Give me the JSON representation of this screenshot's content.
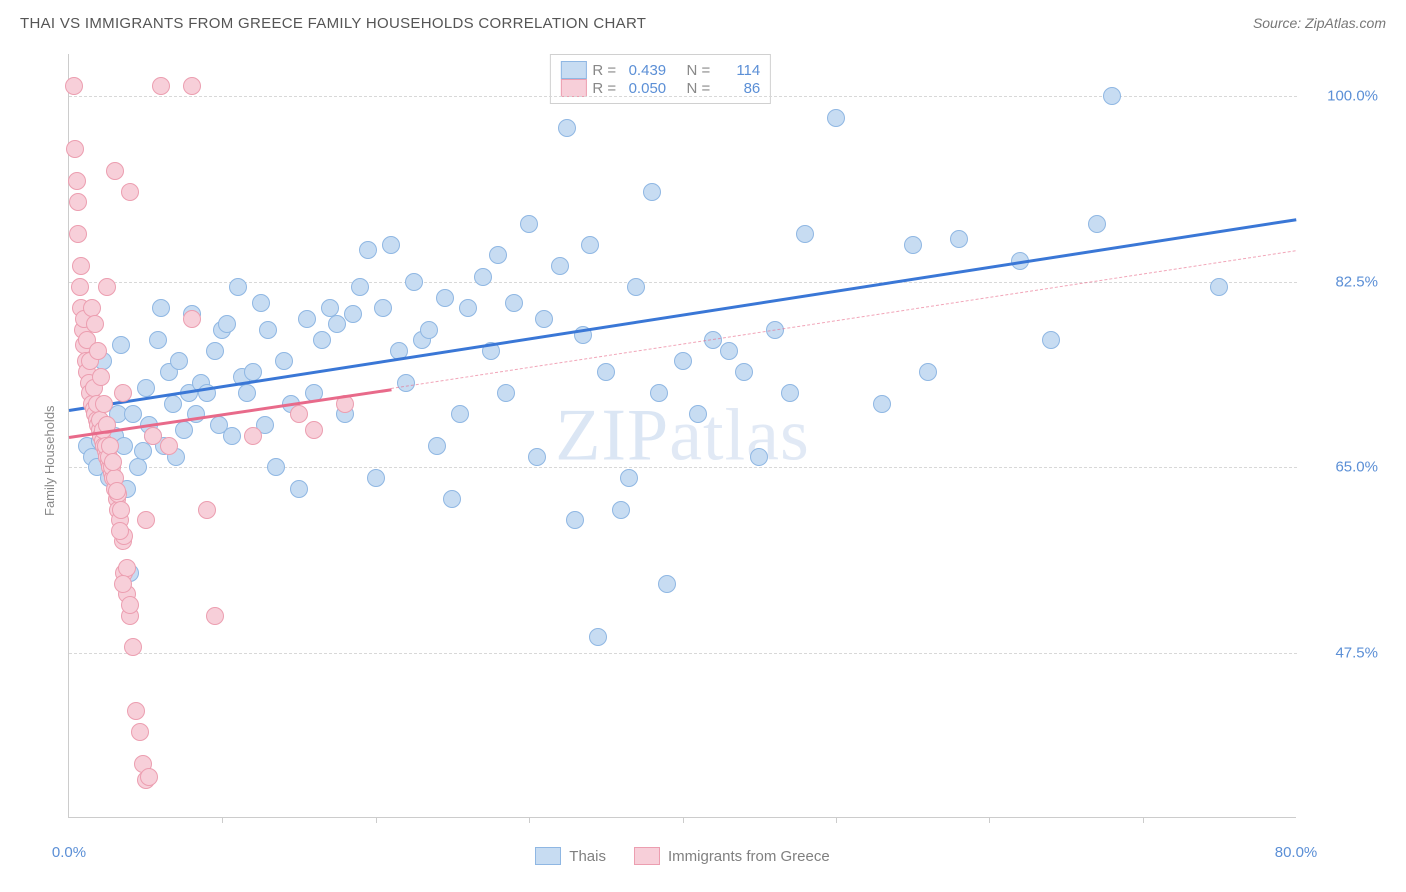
{
  "title": "THAI VS IMMIGRANTS FROM GREECE FAMILY HOUSEHOLDS CORRELATION CHART",
  "source": "Source: ZipAtlas.com",
  "watermark": "ZIPatlas",
  "ylabel": "Family Households",
  "chart": {
    "type": "scatter",
    "xlim": [
      0,
      80
    ],
    "ylim": [
      32,
      104
    ],
    "x_axis_labels": [
      {
        "x": 0,
        "label": "0.0%"
      },
      {
        "x": 80,
        "label": "80.0%"
      }
    ],
    "xticks": [
      10,
      20,
      30,
      40,
      50,
      60,
      70
    ],
    "yticks": [
      {
        "y": 47.5,
        "label": "47.5%"
      },
      {
        "y": 65.0,
        "label": "65.0%"
      },
      {
        "y": 82.5,
        "label": "82.5%"
      },
      {
        "y": 100.0,
        "label": "100.0%"
      }
    ],
    "grid_color": "#d8d8d8",
    "background_color": "#ffffff",
    "marker_radius": 9,
    "series": [
      {
        "name": "Thais",
        "color_fill": "#c7dcf2",
        "color_stroke": "#8fb7e3",
        "trend_color": "#3a77d6",
        "trend_width": 3,
        "trend": {
          "x1": 0,
          "y1": 70.5,
          "x2": 80,
          "y2": 88.5
        },
        "extrapolation": null,
        "stats": {
          "R": "0.439",
          "N": "114"
        },
        "points": [
          [
            1.2,
            67
          ],
          [
            1.5,
            66
          ],
          [
            1.8,
            65
          ],
          [
            2,
            67.5
          ],
          [
            2.2,
            75
          ],
          [
            2.5,
            66
          ],
          [
            2.6,
            64
          ],
          [
            2.8,
            68
          ],
          [
            3,
            68
          ],
          [
            3.2,
            70
          ],
          [
            3.4,
            76.5
          ],
          [
            3.6,
            67
          ],
          [
            3.8,
            63
          ],
          [
            4,
            55
          ],
          [
            4.2,
            70
          ],
          [
            4.5,
            65
          ],
          [
            4.8,
            66.5
          ],
          [
            5,
            72.5
          ],
          [
            5.2,
            69
          ],
          [
            5.5,
            68
          ],
          [
            5.8,
            77
          ],
          [
            6,
            80
          ],
          [
            6.2,
            67
          ],
          [
            6.5,
            74
          ],
          [
            6.8,
            71
          ],
          [
            7,
            66
          ],
          [
            7.2,
            75
          ],
          [
            7.5,
            68.5
          ],
          [
            7.8,
            72
          ],
          [
            8,
            79.5
          ],
          [
            8.3,
            70
          ],
          [
            8.6,
            73
          ],
          [
            9,
            72
          ],
          [
            9.5,
            76
          ],
          [
            9.8,
            69
          ],
          [
            10,
            78
          ],
          [
            10.3,
            78.5
          ],
          [
            10.6,
            68
          ],
          [
            11,
            82
          ],
          [
            11.3,
            73.5
          ],
          [
            11.6,
            72
          ],
          [
            12,
            74
          ],
          [
            12.5,
            80.5
          ],
          [
            12.8,
            69
          ],
          [
            13,
            78
          ],
          [
            13.5,
            65
          ],
          [
            14,
            75
          ],
          [
            14.5,
            71
          ],
          [
            15,
            63
          ],
          [
            15.5,
            79
          ],
          [
            16,
            72
          ],
          [
            16.5,
            77
          ],
          [
            17,
            80
          ],
          [
            17.5,
            78.5
          ],
          [
            18,
            70
          ],
          [
            18.5,
            79.5
          ],
          [
            19,
            82
          ],
          [
            19.5,
            85.5
          ],
          [
            20,
            64
          ],
          [
            20.5,
            80
          ],
          [
            21,
            86
          ],
          [
            21.5,
            76
          ],
          [
            22,
            73
          ],
          [
            22.5,
            82.5
          ],
          [
            23,
            77
          ],
          [
            23.5,
            78
          ],
          [
            24,
            67
          ],
          [
            24.5,
            81
          ],
          [
            25,
            62
          ],
          [
            25.5,
            70
          ],
          [
            26,
            80
          ],
          [
            27,
            83
          ],
          [
            27.5,
            76
          ],
          [
            28,
            85
          ],
          [
            28.5,
            72
          ],
          [
            29,
            80.5
          ],
          [
            30,
            88
          ],
          [
            30.5,
            66
          ],
          [
            31,
            79
          ],
          [
            32,
            84
          ],
          [
            32.5,
            97
          ],
          [
            33,
            60
          ],
          [
            33.5,
            77.5
          ],
          [
            34,
            86
          ],
          [
            34.5,
            49
          ],
          [
            35,
            74
          ],
          [
            36,
            61
          ],
          [
            36.5,
            64
          ],
          [
            37,
            82
          ],
          [
            38,
            91
          ],
          [
            38.5,
            72
          ],
          [
            39,
            54
          ],
          [
            40,
            75
          ],
          [
            41,
            70
          ],
          [
            42,
            77
          ],
          [
            43,
            76
          ],
          [
            44,
            74
          ],
          [
            45,
            66
          ],
          [
            46,
            78
          ],
          [
            47,
            72
          ],
          [
            48,
            87
          ],
          [
            50,
            98
          ],
          [
            53,
            71
          ],
          [
            55,
            86
          ],
          [
            56,
            74
          ],
          [
            58,
            86.5
          ],
          [
            62,
            84.5
          ],
          [
            64,
            77
          ],
          [
            67,
            88
          ],
          [
            68,
            100
          ],
          [
            75,
            82
          ]
        ]
      },
      {
        "name": "Immigrants from Greece",
        "color_fill": "#f7cfd9",
        "color_stroke": "#ec9eb0",
        "trend_color": "#e86a8a",
        "trend_width": 3,
        "trend": {
          "x1": 0,
          "y1": 68,
          "x2": 21,
          "y2": 72.5
        },
        "extrapolation": {
          "x1": 21,
          "y1": 72.5,
          "x2": 80,
          "y2": 85.5,
          "dash": true
        },
        "stats": {
          "R": "0.050",
          "N": "86"
        },
        "points": [
          [
            0.3,
            101
          ],
          [
            0.5,
            92
          ],
          [
            0.6,
            87
          ],
          [
            0.7,
            82
          ],
          [
            0.8,
            80
          ],
          [
            0.9,
            78
          ],
          [
            1,
            76.5
          ],
          [
            1.1,
            75
          ],
          [
            1.2,
            74
          ],
          [
            1.3,
            73
          ],
          [
            1.4,
            72
          ],
          [
            1.5,
            71
          ],
          [
            1.6,
            70.5
          ],
          [
            1.7,
            70
          ],
          [
            1.8,
            69.5
          ],
          [
            1.9,
            69
          ],
          [
            2,
            68.5
          ],
          [
            2.1,
            68
          ],
          [
            2.2,
            67.5
          ],
          [
            2.3,
            67
          ],
          [
            2.4,
            66.5
          ],
          [
            2.5,
            66
          ],
          [
            2.6,
            65.5
          ],
          [
            2.7,
            65
          ],
          [
            2.8,
            64.5
          ],
          [
            2.9,
            64
          ],
          [
            3,
            63
          ],
          [
            3.1,
            62
          ],
          [
            3.2,
            61
          ],
          [
            3.3,
            60
          ],
          [
            3.5,
            58
          ],
          [
            3.6,
            55
          ],
          [
            3.8,
            53
          ],
          [
            4,
            51
          ],
          [
            4.2,
            48
          ],
          [
            4.4,
            42
          ],
          [
            4.6,
            40
          ],
          [
            4.8,
            37
          ],
          [
            5,
            35.5
          ],
          [
            0.4,
            95
          ],
          [
            0.6,
            90
          ],
          [
            0.8,
            84
          ],
          [
            1,
            79
          ],
          [
            1.2,
            77
          ],
          [
            1.4,
            75
          ],
          [
            1.6,
            72.5
          ],
          [
            1.8,
            71
          ],
          [
            2,
            69.5
          ],
          [
            2.2,
            68.5
          ],
          [
            2.4,
            67
          ],
          [
            2.6,
            66
          ],
          [
            2.8,
            65
          ],
          [
            3,
            64
          ],
          [
            3.2,
            62.5
          ],
          [
            3.4,
            61
          ],
          [
            3.6,
            58.5
          ],
          [
            3.8,
            55.5
          ],
          [
            4,
            52
          ],
          [
            1.5,
            80
          ],
          [
            1.7,
            78.5
          ],
          [
            1.9,
            76
          ],
          [
            2.1,
            73.5
          ],
          [
            2.3,
            71
          ],
          [
            2.5,
            69
          ],
          [
            2.7,
            67
          ],
          [
            2.9,
            65.5
          ],
          [
            3.1,
            62.8
          ],
          [
            3.3,
            59
          ],
          [
            3.5,
            54
          ],
          [
            6,
            101
          ],
          [
            8,
            101
          ],
          [
            3,
            93
          ],
          [
            4,
            91
          ],
          [
            8,
            79
          ],
          [
            9,
            61
          ],
          [
            9.5,
            51
          ],
          [
            2.5,
            82
          ],
          [
            3.5,
            72
          ],
          [
            5.5,
            68
          ],
          [
            6.5,
            67
          ],
          [
            12,
            68
          ],
          [
            15,
            70
          ],
          [
            18,
            71
          ],
          [
            16,
            68.5
          ],
          [
            5,
            60
          ],
          [
            5.2,
            35.8
          ]
        ]
      }
    ]
  }
}
